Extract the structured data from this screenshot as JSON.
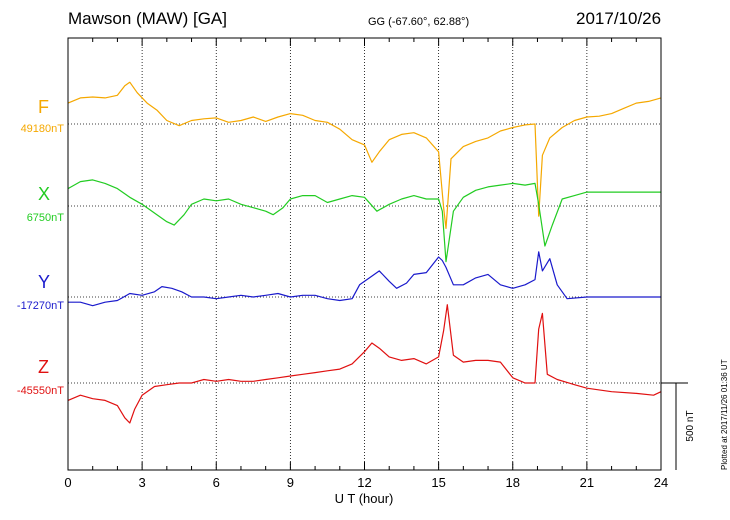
{
  "header": {
    "station": "Mawson (MAW)  [GA]",
    "coords": "GG (-67.60°,  62.88°)",
    "date": "2017/10/26"
  },
  "footer_note": "Plotted at 2017/11/26 01:36 UT",
  "scale_bar_label": "500 nT",
  "chart_data": {
    "type": "line",
    "title": "Mawson (MAW)  [GA]",
    "xlabel": "U T (hour)",
    "xlim": [
      0,
      24
    ],
    "xticks": [
      0,
      3,
      6,
      9,
      12,
      15,
      18,
      21,
      24
    ],
    "grid": true,
    "scale_nT": 500,
    "series": [
      {
        "name": "F",
        "baseline_label": "49180nT",
        "baseline": 49180,
        "color": "#f5a800",
        "x": [
          0,
          0.5,
          1,
          1.5,
          2,
          2.3,
          2.5,
          2.8,
          3.2,
          3.6,
          4,
          4.5,
          5,
          5.5,
          6,
          6.5,
          7,
          7.5,
          8,
          8.5,
          9,
          9.5,
          10,
          10.5,
          11,
          11.5,
          12,
          12.3,
          12.6,
          13,
          13.5,
          14,
          14.5,
          15,
          15.2,
          15.3,
          15.5,
          16,
          16.5,
          17,
          17.5,
          18,
          18.5,
          18.9,
          19.05,
          19.2,
          19.5,
          20,
          20.5,
          21,
          21.5,
          22,
          22.5,
          23,
          23.5,
          24
        ],
        "values": [
          49300,
          49330,
          49335,
          49330,
          49345,
          49400,
          49420,
          49360,
          49300,
          49260,
          49200,
          49170,
          49200,
          49210,
          49215,
          49190,
          49200,
          49220,
          49195,
          49220,
          49240,
          49230,
          49200,
          49190,
          49150,
          49090,
          49060,
          48960,
          49020,
          49090,
          49120,
          49130,
          49100,
          49020,
          48700,
          48580,
          48980,
          49050,
          49080,
          49100,
          49140,
          49160,
          49175,
          49180,
          48650,
          49000,
          49100,
          49160,
          49200,
          49220,
          49225,
          49240,
          49270,
          49300,
          49310,
          49330
        ]
      },
      {
        "name": "X",
        "baseline_label": "6750nT",
        "baseline": 6750,
        "color": "#22cc22",
        "x": [
          0,
          0.5,
          1,
          1.5,
          2,
          2.5,
          3,
          3.3,
          3.6,
          4,
          4.3,
          4.7,
          5,
          5.5,
          6,
          6.5,
          7,
          7.5,
          8,
          8.3,
          8.7,
          9,
          9.5,
          10,
          10.5,
          11,
          11.5,
          12,
          12.5,
          13,
          13.5,
          14,
          14.5,
          15,
          15.15,
          15.3,
          15.6,
          16,
          16.5,
          17,
          17.5,
          18,
          18.5,
          18.9,
          19.05,
          19.3,
          19.6,
          20,
          20.5,
          21,
          22,
          23,
          24
        ],
        "values": [
          6850,
          6890,
          6900,
          6880,
          6850,
          6800,
          6760,
          6730,
          6700,
          6660,
          6640,
          6700,
          6760,
          6790,
          6780,
          6790,
          6760,
          6740,
          6720,
          6700,
          6740,
          6790,
          6810,
          6810,
          6770,
          6790,
          6810,
          6800,
          6720,
          6760,
          6790,
          6810,
          6790,
          6790,
          6720,
          6430,
          6720,
          6800,
          6840,
          6860,
          6870,
          6880,
          6870,
          6880,
          6760,
          6520,
          6640,
          6790,
          6810,
          6830,
          6830,
          6830,
          6830
        ]
      },
      {
        "name": "Y",
        "baseline_label": "-17270nT",
        "baseline": -17270,
        "color": "#1a1acc",
        "x": [
          0,
          0.5,
          1,
          1.5,
          2,
          2.5,
          3,
          3.5,
          3.8,
          4.2,
          4.6,
          5,
          5.5,
          6,
          6.5,
          7,
          7.5,
          8,
          8.5,
          9,
          9.5,
          10,
          10.5,
          11,
          11.5,
          11.8,
          12.2,
          12.6,
          13,
          13.3,
          13.7,
          14,
          14.5,
          15,
          15.15,
          15.3,
          15.6,
          16,
          16.5,
          17,
          17.5,
          18,
          18.5,
          18.9,
          19.05,
          19.2,
          19.5,
          19.8,
          20.2,
          21,
          22,
          23,
          24
        ],
        "values": [
          -17300,
          -17300,
          -17320,
          -17300,
          -17290,
          -17250,
          -17260,
          -17240,
          -17210,
          -17220,
          -17240,
          -17270,
          -17270,
          -17280,
          -17270,
          -17260,
          -17270,
          -17260,
          -17250,
          -17270,
          -17260,
          -17260,
          -17280,
          -17290,
          -17280,
          -17200,
          -17160,
          -17120,
          -17180,
          -17220,
          -17190,
          -17140,
          -17130,
          -17040,
          -17060,
          -17100,
          -17200,
          -17200,
          -17160,
          -17140,
          -17200,
          -17220,
          -17200,
          -17170,
          -17010,
          -17120,
          -17050,
          -17200,
          -17280,
          -17270,
          -17270,
          -17270,
          -17270
        ]
      },
      {
        "name": "Z",
        "baseline_label": "-45550nT",
        "baseline": -45550,
        "color": "#e01010",
        "x": [
          0,
          0.5,
          1,
          1.5,
          2,
          2.3,
          2.5,
          2.7,
          3,
          3.5,
          4,
          4.5,
          5,
          5.5,
          6,
          6.5,
          7,
          7.5,
          8,
          8.5,
          9,
          9.5,
          10,
          10.5,
          11,
          11.5,
          12,
          12.3,
          12.6,
          13,
          13.5,
          14,
          14.5,
          15,
          15.2,
          15.35,
          15.6,
          16,
          16.5,
          17,
          17.5,
          18,
          18.5,
          18.9,
          19.05,
          19.2,
          19.4,
          19.8,
          20.5,
          21,
          22,
          23,
          23.7,
          24
        ],
        "values": [
          -45650,
          -45620,
          -45640,
          -45650,
          -45680,
          -45750,
          -45780,
          -45700,
          -45620,
          -45570,
          -45560,
          -45550,
          -45550,
          -45530,
          -45540,
          -45530,
          -45540,
          -45540,
          -45530,
          -45520,
          -45510,
          -45500,
          -45490,
          -45480,
          -45470,
          -45440,
          -45370,
          -45320,
          -45350,
          -45400,
          -45420,
          -45410,
          -45440,
          -45400,
          -45250,
          -45100,
          -45390,
          -45430,
          -45420,
          -45420,
          -45430,
          -45520,
          -45550,
          -45550,
          -45240,
          -45150,
          -45500,
          -45530,
          -45560,
          -45580,
          -45600,
          -45610,
          -45620,
          -45600
        ]
      }
    ]
  }
}
